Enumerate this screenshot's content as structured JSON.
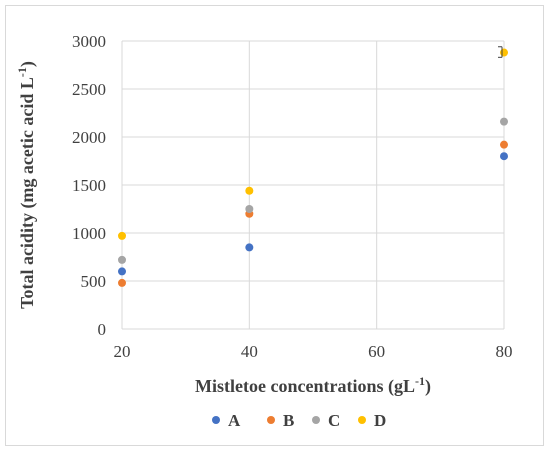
{
  "chart_data": {
    "type": "scatter",
    "xlabel": "Mistletoe concentrations (gL",
    "xlabel_sup": "-1",
    "xlabel_end": ")",
    "ylabel": "Total acidity (mg acetic acid L",
    "ylabel_sup": "-1",
    "ylabel_end": ")",
    "xlim": [
      20,
      80
    ],
    "ylim": [
      0,
      3000
    ],
    "xticks": [
      20,
      40,
      60,
      80
    ],
    "yticks": [
      0,
      500,
      1000,
      1500,
      2000,
      2500,
      3000
    ],
    "grid": true,
    "legend_position": "bottom",
    "series": [
      {
        "name": "A",
        "color": "#4472c4",
        "x": [
          20,
          40,
          80
        ],
        "y": [
          600,
          850,
          1800
        ]
      },
      {
        "name": "B",
        "color": "#ed7d31",
        "x": [
          20,
          40,
          80
        ],
        "y": [
          480,
          1200,
          1920
        ]
      },
      {
        "name": "C",
        "color": "#a5a5a5",
        "x": [
          20,
          40,
          80
        ],
        "y": [
          720,
          1250,
          2160
        ]
      },
      {
        "name": "D",
        "color": "#ffc000",
        "x": [
          20,
          40,
          80
        ],
        "y": [
          970,
          1440,
          2880
        ]
      }
    ],
    "error_bars": [
      {
        "series": "D",
        "x": 80,
        "y": 2880,
        "low": 2830,
        "high": 2940
      }
    ]
  }
}
